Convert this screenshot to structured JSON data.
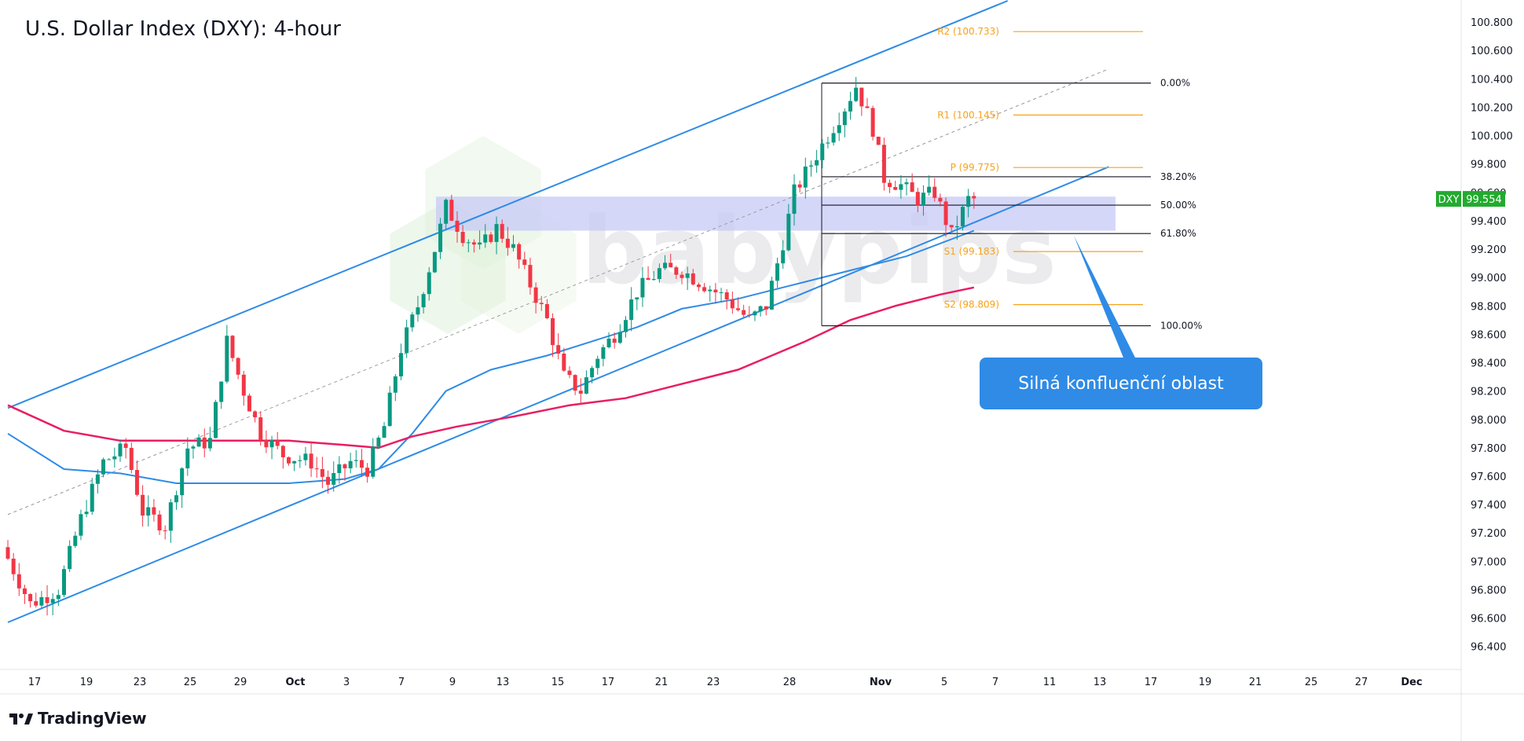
{
  "title": "U.S. Dollar Index (DXY): 4-hour",
  "callout": "Silná konfluenční oblast",
  "watermark": "babypips",
  "brand": "TradingView",
  "colors": {
    "up": "#089981",
    "down": "#f23645",
    "channel": "#2f8be6",
    "ma_fast": "#2f8be6",
    "ma_slow": "#e91e63",
    "pivot": "#f7a21b",
    "fib": "#131722",
    "zone": "#c7c9f5",
    "price_badge": "#22ab2e"
  },
  "chart_data": {
    "type": "candlestick",
    "symbol": "DXY",
    "last_price": "99.554",
    "ylim": [
      96.24,
      100.95
    ],
    "y_ticks": [
      "100.800",
      "100.600",
      "100.400",
      "100.200",
      "100.000",
      "99.800",
      "99.600",
      "99.400",
      "99.200",
      "99.000",
      "98.800",
      "98.600",
      "98.400",
      "98.200",
      "98.000",
      "97.800",
      "97.600",
      "97.400",
      "97.200",
      "97.000",
      "96.800",
      "96.600",
      "96.400"
    ],
    "x_ticks": [
      "17",
      "19",
      "23",
      "25",
      "29",
      "Oct",
      "3",
      "7",
      "9",
      "13",
      "15",
      "17",
      "21",
      "23",
      "28",
      "Nov",
      "5",
      "7",
      "11",
      "13",
      "17",
      "19",
      "21",
      "25",
      "27",
      "Dec"
    ],
    "price_anchors": [
      [
        0,
        97.1
      ],
      [
        5,
        96.7
      ],
      [
        10,
        96.8
      ],
      [
        14,
        97.3
      ],
      [
        18,
        97.7
      ],
      [
        22,
        97.8
      ],
      [
        25,
        97.35
      ],
      [
        29,
        97.25
      ],
      [
        33,
        97.8
      ],
      [
        37,
        97.85
      ],
      [
        40,
        98.55
      ],
      [
        43,
        98.2
      ],
      [
        46,
        97.9
      ],
      [
        50,
        97.75
      ],
      [
        55,
        97.7
      ],
      [
        58,
        97.55
      ],
      [
        62,
        97.7
      ],
      [
        65,
        97.65
      ],
      [
        68,
        97.95
      ],
      [
        71,
        98.5
      ],
      [
        74,
        98.8
      ],
      [
        77,
        99.2
      ],
      [
        79,
        99.5
      ],
      [
        82,
        99.3
      ],
      [
        85,
        99.2
      ],
      [
        88,
        99.35
      ],
      [
        91,
        99.2
      ],
      [
        94,
        98.95
      ],
      [
        97,
        98.7
      ],
      [
        100,
        98.3
      ],
      [
        103,
        98.2
      ],
      [
        106,
        98.45
      ],
      [
        109,
        98.6
      ],
      [
        113,
        98.9
      ],
      [
        117,
        99.05
      ],
      [
        121,
        99.05
      ],
      [
        125,
        98.95
      ],
      [
        129,
        98.85
      ],
      [
        133,
        98.7
      ],
      [
        136,
        98.8
      ],
      [
        139,
        99.25
      ],
      [
        141,
        99.6
      ],
      [
        144,
        99.8
      ],
      [
        147,
        100.0
      ],
      [
        150,
        100.2
      ],
      [
        152,
        100.35
      ],
      [
        155,
        100.05
      ],
      [
        157,
        99.7
      ],
      [
        160,
        99.65
      ],
      [
        163,
        99.55
      ],
      [
        166,
        99.6
      ],
      [
        169,
        99.3
      ],
      [
        172,
        99.55
      ]
    ],
    "fib_levels": [
      {
        "label": "0.00%",
        "price": 100.37
      },
      {
        "label": "38.20%",
        "price": 99.71
      },
      {
        "label": "50.00%",
        "price": 99.51
      },
      {
        "label": "61.80%",
        "price": 99.31
      },
      {
        "label": "100.00%",
        "price": 98.66
      }
    ],
    "pivot_levels": [
      {
        "label": "R2 (100.733)",
        "price": 100.733
      },
      {
        "label": "R1 (100.145)",
        "price": 100.145
      },
      {
        "label": "P (99.775)",
        "price": 99.775
      },
      {
        "label": "S1 (99.183)",
        "price": 99.183
      },
      {
        "label": "S2 (98.809)",
        "price": 98.809
      }
    ],
    "support_zone": [
      99.33,
      99.57
    ],
    "channel": {
      "upper": [
        [
          0,
          98.08
        ],
        [
          178,
          100.95
        ]
      ],
      "lower": [
        [
          0,
          96.57
        ],
        [
          196,
          99.78
        ]
      ],
      "mid_dashed": [
        [
          0,
          97.33
        ],
        [
          196,
          100.47
        ]
      ]
    },
    "ma_fast": [
      [
        0,
        97.9
      ],
      [
        10,
        97.65
      ],
      [
        20,
        97.62
      ],
      [
        30,
        97.55
      ],
      [
        40,
        97.55
      ],
      [
        50,
        97.55
      ],
      [
        60,
        97.58
      ],
      [
        66,
        97.65
      ],
      [
        72,
        97.9
      ],
      [
        78,
        98.2
      ],
      [
        86,
        98.35
      ],
      [
        96,
        98.45
      ],
      [
        104,
        98.55
      ],
      [
        112,
        98.65
      ],
      [
        120,
        98.78
      ],
      [
        130,
        98.85
      ],
      [
        140,
        98.95
      ],
      [
        150,
        99.05
      ],
      [
        160,
        99.15
      ],
      [
        170,
        99.3
      ],
      [
        172,
        99.33
      ]
    ],
    "ma_slow": [
      [
        0,
        98.1
      ],
      [
        10,
        97.92
      ],
      [
        20,
        97.85
      ],
      [
        30,
        97.85
      ],
      [
        40,
        97.85
      ],
      [
        50,
        97.85
      ],
      [
        60,
        97.82
      ],
      [
        66,
        97.8
      ],
      [
        72,
        97.88
      ],
      [
        80,
        97.95
      ],
      [
        90,
        98.02
      ],
      [
        100,
        98.1
      ],
      [
        110,
        98.15
      ],
      [
        120,
        98.25
      ],
      [
        130,
        98.35
      ],
      [
        136,
        98.45
      ],
      [
        142,
        98.55
      ],
      [
        150,
        98.7
      ],
      [
        158,
        98.8
      ],
      [
        166,
        98.88
      ],
      [
        172,
        98.93
      ]
    ]
  }
}
